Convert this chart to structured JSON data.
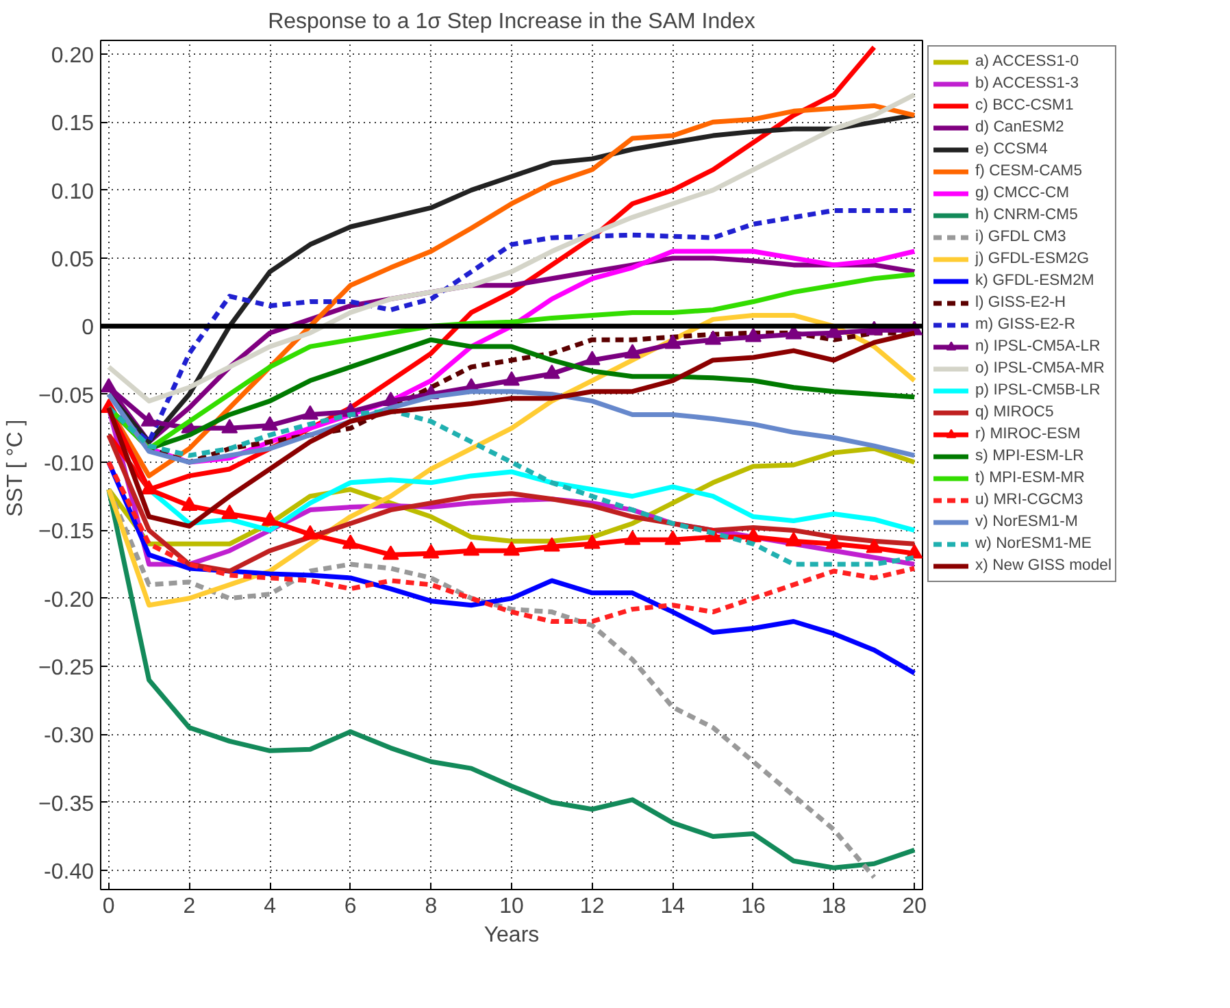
{
  "chart_data": {
    "type": "line",
    "title": "Response to a 1σ Step Increase in the SAM Index",
    "xlabel": "Years",
    "ylabel": "SST  [ °C ]",
    "x": [
      0,
      1,
      2,
      3,
      4,
      5,
      6,
      7,
      8,
      9,
      10,
      11,
      12,
      13,
      14,
      15,
      16,
      17,
      18,
      19,
      20
    ],
    "xlim": [
      -0.2,
      20.2
    ],
    "ylim": [
      -0.414,
      0.21
    ],
    "xticks": [
      0,
      2,
      4,
      6,
      8,
      10,
      12,
      14,
      16,
      18,
      20
    ],
    "yticks": [
      {
        "value": -0.4,
        "label": "-0.40"
      },
      -0.35,
      {
        "value": -0.3,
        "label": "-0.30"
      },
      -0.25,
      {
        "value": -0.2,
        "label": "-0.20"
      },
      -0.15,
      {
        "value": -0.1,
        "label": "-0.10"
      },
      -0.05,
      0,
      0.05,
      {
        "value": 0.1,
        "label": "0.10"
      },
      0.15,
      {
        "value": 0.2,
        "label": "0.20"
      }
    ],
    "grid": true,
    "legend": "right",
    "line_style": "solid",
    "marker": "none",
    "ref_lines": [
      {
        "axis": "y",
        "value": 0,
        "color": "#000000"
      }
    ],
    "series": [
      {
        "name": "a) ACCESS1-0",
        "color": "#bcbc00",
        "values": [
          -0.12,
          -0.16,
          -0.16,
          -0.16,
          -0.145,
          -0.125,
          -0.12,
          -0.13,
          -0.14,
          -0.155,
          -0.158,
          -0.158,
          -0.155,
          -0.145,
          -0.13,
          -0.115,
          -0.103,
          -0.102,
          -0.093,
          -0.09,
          -0.1
        ]
      },
      {
        "name": "b) ACCESS1-3",
        "color": "#c020d0",
        "values": [
          -0.06,
          -0.175,
          -0.175,
          -0.165,
          -0.15,
          -0.135,
          -0.133,
          -0.132,
          -0.133,
          -0.13,
          -0.128,
          -0.127,
          -0.13,
          -0.135,
          -0.145,
          -0.15,
          -0.155,
          -0.16,
          -0.165,
          -0.17,
          -0.175
        ]
      },
      {
        "name": "c) BCC-CSM1",
        "color": "#ff0000",
        "values": [
          -0.08,
          -0.12,
          -0.11,
          -0.105,
          -0.09,
          -0.075,
          -0.06,
          -0.04,
          -0.02,
          0.01,
          0.025,
          0.045,
          0.065,
          0.09,
          0.1,
          0.115,
          0.135,
          0.155,
          0.17,
          0.205,
          null
        ]
      },
      {
        "name": "d) CanESM2",
        "color": "#800080",
        "values": [
          -0.045,
          -0.085,
          -0.06,
          -0.03,
          -0.005,
          0.005,
          0.015,
          0.02,
          0.025,
          0.03,
          0.03,
          0.035,
          0.04,
          0.045,
          0.05,
          0.05,
          0.048,
          0.045,
          0.045,
          0.045,
          0.04
        ]
      },
      {
        "name": "e) CCSM4",
        "color": "#222222",
        "values": [
          -0.05,
          -0.085,
          -0.05,
          0.0,
          0.04,
          0.06,
          0.073,
          0.08,
          0.087,
          0.1,
          0.11,
          0.12,
          0.123,
          0.13,
          0.135,
          0.14,
          0.143,
          0.145,
          0.145,
          0.15,
          0.155
        ]
      },
      {
        "name": "f) CESM-CAM5",
        "color": "#ff6600",
        "values": [
          -0.06,
          -0.11,
          -0.09,
          -0.06,
          -0.03,
          0.0,
          0.03,
          0.043,
          0.055,
          0.072,
          0.09,
          0.105,
          0.115,
          0.138,
          0.14,
          0.15,
          0.152,
          0.158,
          0.16,
          0.162,
          0.155
        ]
      },
      {
        "name": "g) CMCC-CM",
        "color": "#ff00ff",
        "values": [
          -0.06,
          -0.09,
          -0.1,
          -0.097,
          -0.085,
          -0.075,
          -0.065,
          -0.055,
          -0.04,
          -0.015,
          0.0,
          0.02,
          0.035,
          0.043,
          0.055,
          0.055,
          0.055,
          0.05,
          0.045,
          0.048,
          0.055
        ]
      },
      {
        "name": "h) CNRM-CM5",
        "color": "#138a5a",
        "values": [
          -0.12,
          -0.26,
          -0.295,
          -0.305,
          -0.312,
          -0.311,
          -0.298,
          -0.31,
          -0.32,
          -0.325,
          -0.338,
          -0.35,
          -0.355,
          -0.348,
          -0.365,
          -0.375,
          -0.373,
          -0.393,
          -0.398,
          -0.395,
          -0.385
        ]
      },
      {
        "name": "i) GFDL CM3",
        "color": "#999999",
        "line_style": "dashed",
        "values": [
          -0.12,
          -0.19,
          -0.188,
          -0.2,
          -0.197,
          -0.18,
          -0.175,
          -0.178,
          -0.185,
          -0.2,
          -0.208,
          -0.21,
          -0.22,
          -0.245,
          -0.28,
          -0.295,
          -0.32,
          -0.345,
          -0.37,
          -0.405,
          null
        ]
      },
      {
        "name": "j) GFDL-ESM2G",
        "color": "#ffcc33",
        "values": [
          -0.12,
          -0.205,
          -0.2,
          -0.19,
          -0.18,
          -0.16,
          -0.14,
          -0.125,
          -0.105,
          -0.09,
          -0.075,
          -0.055,
          -0.04,
          -0.025,
          -0.01,
          0.005,
          0.008,
          0.008,
          0.0,
          -0.015,
          -0.04
        ]
      },
      {
        "name": "k) GFDL-ESM2M",
        "color": "#0000ff",
        "values": [
          -0.1,
          -0.168,
          -0.178,
          -0.18,
          -0.182,
          -0.183,
          -0.185,
          -0.193,
          -0.202,
          -0.205,
          -0.2,
          -0.187,
          -0.196,
          -0.196,
          -0.21,
          -0.225,
          -0.222,
          -0.217,
          -0.226,
          -0.238,
          -0.255
        ]
      },
      {
        "name": "l) GISS-E2-H",
        "color": "#5c0000",
        "line_style": "dashed",
        "values": [
          -0.06,
          -0.09,
          -0.1,
          -0.09,
          -0.085,
          -0.08,
          -0.075,
          -0.06,
          -0.045,
          -0.03,
          -0.025,
          -0.02,
          -0.01,
          -0.01,
          -0.008,
          -0.006,
          -0.005,
          -0.005,
          -0.01,
          -0.005,
          -0.005
        ]
      },
      {
        "name": "m) GISS-E2-R",
        "color": "#2020d0",
        "line_style": "dashed",
        "values": [
          -0.06,
          -0.085,
          -0.02,
          0.022,
          0.015,
          0.018,
          0.018,
          0.012,
          0.02,
          0.04,
          0.06,
          0.065,
          0.066,
          0.067,
          0.066,
          0.065,
          0.075,
          0.08,
          0.085,
          0.085,
          0.085
        ]
      },
      {
        "name": "n) IPSL-CM5A-LR",
        "color": "#7a0080",
        "marker": "triangle",
        "values": [
          -0.045,
          -0.07,
          -0.075,
          -0.075,
          -0.073,
          -0.065,
          -0.063,
          -0.055,
          -0.05,
          -0.045,
          -0.04,
          -0.035,
          -0.025,
          -0.02,
          -0.013,
          -0.01,
          -0.008,
          -0.006,
          -0.005,
          -0.003,
          -0.003
        ]
      },
      {
        "name": "o) IPSL-CM5A-MR",
        "color": "#d4d4c8",
        "values": [
          -0.03,
          -0.055,
          -0.045,
          -0.03,
          -0.015,
          -0.005,
          0.01,
          0.02,
          0.025,
          0.03,
          0.04,
          0.055,
          0.068,
          0.08,
          0.09,
          0.1,
          0.115,
          0.13,
          0.145,
          0.155,
          0.17
        ]
      },
      {
        "name": "p) IPSL-CM5B-LR",
        "color": "#00ffff",
        "values": [
          -0.06,
          -0.12,
          -0.145,
          -0.142,
          -0.15,
          -0.13,
          -0.115,
          -0.113,
          -0.115,
          -0.11,
          -0.107,
          -0.115,
          -0.12,
          -0.125,
          -0.118,
          -0.125,
          -0.14,
          -0.143,
          -0.138,
          -0.142,
          -0.15
        ]
      },
      {
        "name": "q) MIROC5",
        "color": "#c02020",
        "values": [
          -0.08,
          -0.15,
          -0.175,
          -0.18,
          -0.165,
          -0.155,
          -0.145,
          -0.135,
          -0.13,
          -0.125,
          -0.123,
          -0.127,
          -0.132,
          -0.14,
          -0.145,
          -0.15,
          -0.148,
          -0.15,
          -0.155,
          -0.158,
          -0.16
        ]
      },
      {
        "name": "r) MIROC-ESM",
        "color": "#ff0000",
        "marker": "triangle",
        "values": [
          -0.06,
          -0.12,
          -0.132,
          -0.138,
          -0.143,
          -0.153,
          -0.16,
          -0.168,
          -0.167,
          -0.165,
          -0.165,
          -0.162,
          -0.16,
          -0.157,
          -0.157,
          -0.155,
          -0.155,
          -0.158,
          -0.16,
          -0.163,
          -0.167
        ]
      },
      {
        "name": "s) MPI-ESM-LR",
        "color": "#007a00",
        "values": [
          -0.06,
          -0.09,
          -0.08,
          -0.065,
          -0.055,
          -0.04,
          -0.03,
          -0.02,
          -0.01,
          -0.015,
          -0.015,
          -0.025,
          -0.033,
          -0.037,
          -0.037,
          -0.038,
          -0.04,
          -0.045,
          -0.048,
          -0.05,
          -0.052
        ]
      },
      {
        "name": "t) MPI-ESM-MR",
        "color": "#33dd00",
        "values": [
          -0.06,
          -0.09,
          -0.07,
          -0.05,
          -0.03,
          -0.015,
          -0.01,
          -0.005,
          0.0,
          0.002,
          0.003,
          0.006,
          0.008,
          0.01,
          0.01,
          0.012,
          0.018,
          0.025,
          0.03,
          0.035,
          0.038
        ]
      },
      {
        "name": "u) MRI-CGCM3",
        "color": "#ff2020",
        "line_style": "dashed",
        "values": [
          -0.1,
          -0.16,
          -0.175,
          -0.183,
          -0.185,
          -0.187,
          -0.193,
          -0.187,
          -0.19,
          -0.2,
          -0.21,
          -0.217,
          -0.217,
          -0.208,
          -0.205,
          -0.21,
          -0.2,
          -0.19,
          -0.18,
          -0.185,
          -0.178
        ]
      },
      {
        "name": "v) NorESM1-M",
        "color": "#6688cc",
        "values": [
          -0.05,
          -0.092,
          -0.1,
          -0.095,
          -0.09,
          -0.08,
          -0.07,
          -0.06,
          -0.052,
          -0.048,
          -0.048,
          -0.05,
          -0.055,
          -0.065,
          -0.065,
          -0.068,
          -0.072,
          -0.078,
          -0.082,
          -0.088,
          -0.095
        ]
      },
      {
        "name": "w) NorESM1-ME",
        "color": "#20b0b0",
        "line_style": "dashed",
        "values": [
          -0.06,
          -0.088,
          -0.095,
          -0.09,
          -0.08,
          -0.072,
          -0.065,
          -0.062,
          -0.07,
          -0.085,
          -0.1,
          -0.115,
          -0.125,
          -0.135,
          -0.145,
          -0.152,
          -0.16,
          -0.175,
          -0.175,
          -0.175,
          -0.17
        ]
      },
      {
        "name": "x) New GISS model",
        "color": "#8b0000",
        "values": [
          -0.06,
          -0.14,
          -0.147,
          -0.125,
          -0.105,
          -0.085,
          -0.07,
          -0.063,
          -0.06,
          -0.057,
          -0.053,
          -0.053,
          -0.048,
          -0.048,
          -0.04,
          -0.025,
          -0.023,
          -0.018,
          -0.025,
          -0.012,
          -0.005
        ]
      }
    ]
  }
}
